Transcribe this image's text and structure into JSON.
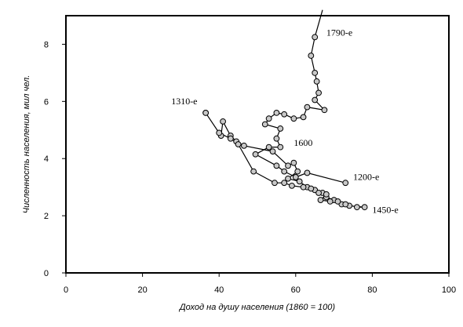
{
  "chart_data": {
    "type": "scatter",
    "xlabel": "Доход на душу населения (1860 = 100)",
    "ylabel": "Численность населения, мил чел.",
    "xlim": [
      0,
      100
    ],
    "ylim": [
      0,
      9
    ],
    "x_ticks": [
      "0",
      "20",
      "40",
      "60",
      "80",
      "100"
    ],
    "y_ticks": [
      "0",
      "2",
      "4",
      "6",
      "8"
    ],
    "grid": false,
    "legend": "none",
    "marker": "circle",
    "line_color": "#000000",
    "marker_fill": "#c8c8c8",
    "points": [
      {
        "x": 73.0,
        "y": 3.15
      },
      {
        "x": 63.0,
        "y": 3.5
      },
      {
        "x": 60.0,
        "y": 3.35
      },
      {
        "x": 57.0,
        "y": 3.55
      },
      {
        "x": 55.0,
        "y": 3.75
      },
      {
        "x": 49.5,
        "y": 4.15
      },
      {
        "x": 53.0,
        "y": 4.4
      },
      {
        "x": 56.0,
        "y": 4.4
      },
      {
        "x": 55.0,
        "y": 4.7
      },
      {
        "x": 56.0,
        "y": 5.05
      },
      {
        "x": 52.0,
        "y": 5.2
      },
      {
        "x": 53.0,
        "y": 5.4
      },
      {
        "x": 55.0,
        "y": 5.6
      },
      {
        "x": 57.0,
        "y": 5.55
      },
      {
        "x": 59.5,
        "y": 5.4
      },
      {
        "x": 62.0,
        "y": 5.45
      },
      {
        "x": 63.0,
        "y": 5.8
      },
      {
        "x": 67.5,
        "y": 5.7
      },
      {
        "x": 65.0,
        "y": 6.05
      },
      {
        "x": 66.0,
        "y": 6.3
      },
      {
        "x": 65.5,
        "y": 6.7
      },
      {
        "x": 65.0,
        "y": 7.0
      },
      {
        "x": 64.0,
        "y": 7.6
      },
      {
        "x": 65.0,
        "y": 8.25
      },
      {
        "x": 67.0,
        "y": 9.2
      }
    ],
    "points_b": [
      {
        "x": 36.5,
        "y": 5.6
      },
      {
        "x": 40.5,
        "y": 4.8
      },
      {
        "x": 41.0,
        "y": 5.3
      },
      {
        "x": 43.0,
        "y": 4.8
      },
      {
        "x": 44.5,
        "y": 4.6
      },
      {
        "x": 46.5,
        "y": 4.45
      },
      {
        "x": 54.0,
        "y": 4.25
      },
      {
        "x": 58.0,
        "y": 3.75
      },
      {
        "x": 59.5,
        "y": 3.85
      },
      {
        "x": 60.5,
        "y": 3.55
      },
      {
        "x": 58.0,
        "y": 3.3
      },
      {
        "x": 61.0,
        "y": 3.2
      },
      {
        "x": 63.0,
        "y": 3.0
      },
      {
        "x": 65.0,
        "y": 2.9
      },
      {
        "x": 67.0,
        "y": 2.8
      },
      {
        "x": 68.0,
        "y": 2.65
      },
      {
        "x": 70.0,
        "y": 2.55
      },
      {
        "x": 72.0,
        "y": 2.4
      },
      {
        "x": 74.0,
        "y": 2.35
      },
      {
        "x": 78.0,
        "y": 2.3
      },
      {
        "x": 76.0,
        "y": 2.3
      },
      {
        "x": 73.0,
        "y": 2.4
      },
      {
        "x": 71.0,
        "y": 2.5
      },
      {
        "x": 69.0,
        "y": 2.5
      },
      {
        "x": 66.5,
        "y": 2.55
      },
      {
        "x": 68.0,
        "y": 2.75
      },
      {
        "x": 66.0,
        "y": 2.8
      },
      {
        "x": 64.0,
        "y": 2.95
      },
      {
        "x": 62.0,
        "y": 3.0
      },
      {
        "x": 59.0,
        "y": 3.05
      },
      {
        "x": 57.0,
        "y": 3.15
      },
      {
        "x": 54.5,
        "y": 3.15
      },
      {
        "x": 49.0,
        "y": 3.55
      },
      {
        "x": 45.0,
        "y": 4.5
      },
      {
        "x": 43.0,
        "y": 4.7
      },
      {
        "x": 40.0,
        "y": 4.9
      },
      {
        "x": 36.5,
        "y": 5.6
      }
    ],
    "annotations": [
      {
        "text": "1790-е",
        "x": 68.0,
        "y": 8.3
      },
      {
        "text": "1310-е",
        "x": 27.5,
        "y": 5.9
      },
      {
        "text": "1600",
        "x": 59.5,
        "y": 4.45
      },
      {
        "text": "1200-е",
        "x": 75.0,
        "y": 3.25
      },
      {
        "text": "1450-е",
        "x": 80.0,
        "y": 2.1
      }
    ]
  }
}
